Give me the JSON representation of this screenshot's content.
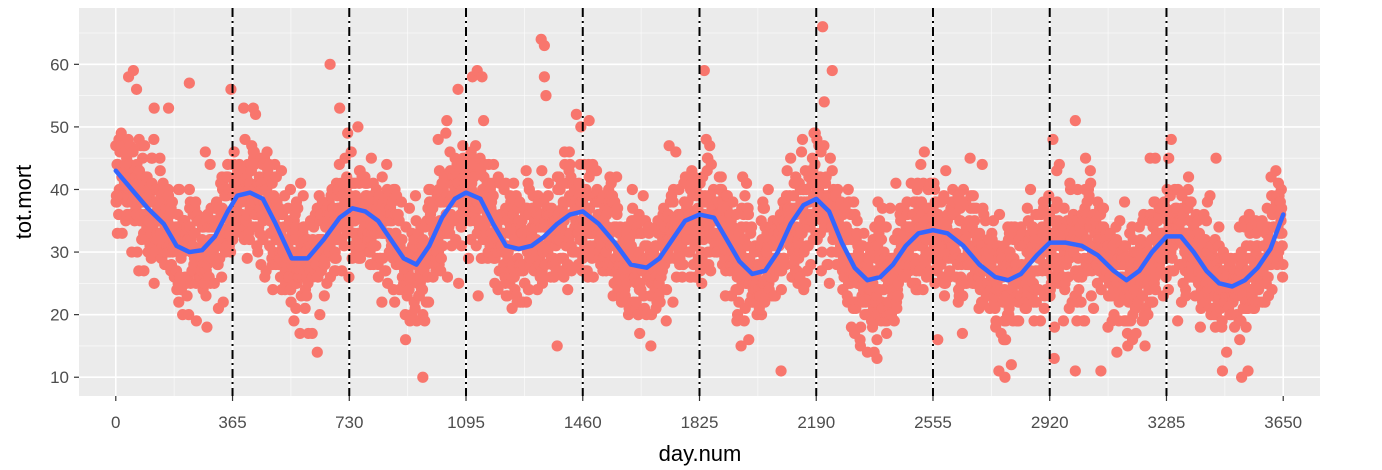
{
  "chart_data": {
    "type": "scatter",
    "title": "",
    "xlabel": "day.num",
    "ylabel": "tot.mort",
    "xlim": [
      -115,
      3765
    ],
    "ylim": [
      7,
      69
    ],
    "x_ticks": [
      0,
      365,
      730,
      1095,
      1460,
      1825,
      2190,
      2555,
      2920,
      3285,
      3650
    ],
    "x_tick_labels": [
      "0",
      "365",
      "730",
      "1095",
      "1460",
      "1825",
      "2190",
      "2555",
      "2920",
      "3285",
      "3650"
    ],
    "y_ticks": [
      10,
      20,
      30,
      40,
      50,
      60
    ],
    "y_tick_labels": [
      "10",
      "20",
      "30",
      "40",
      "50",
      "60"
    ],
    "grid": true,
    "legend": "none",
    "vlines": [
      365,
      730,
      1095,
      1460,
      1825,
      2190,
      2555,
      2920,
      3285
    ],
    "colors": {
      "panel": "#ebebeb",
      "grid": "#ffffff",
      "points": "#f8766d",
      "smooth": "#3366ff",
      "vline": "#000000"
    },
    "smooth_line": {
      "x": [
        0,
        50,
        100,
        150,
        190,
        230,
        270,
        310,
        350,
        380,
        420,
        460,
        500,
        550,
        600,
        650,
        700,
        740,
        780,
        820,
        860,
        900,
        940,
        980,
        1020,
        1060,
        1095,
        1140,
        1180,
        1220,
        1260,
        1300,
        1340,
        1380,
        1420,
        1460,
        1510,
        1560,
        1610,
        1660,
        1700,
        1740,
        1780,
        1825,
        1870,
        1910,
        1950,
        1990,
        2030,
        2070,
        2110,
        2150,
        2190,
        2230,
        2270,
        2310,
        2350,
        2390,
        2430,
        2470,
        2510,
        2555,
        2600,
        2650,
        2700,
        2750,
        2790,
        2830,
        2880,
        2920,
        2970,
        3020,
        3070,
        3120,
        3160,
        3200,
        3240,
        3285,
        3330,
        3370,
        3410,
        3450,
        3490,
        3530,
        3570,
        3610,
        3650
      ],
      "y": [
        43.0,
        40.0,
        37.0,
        34.5,
        31.0,
        30.0,
        30.3,
        32.5,
        36.5,
        39.0,
        39.5,
        38.5,
        34.5,
        29.0,
        29.0,
        32.0,
        35.5,
        37.0,
        36.5,
        35.0,
        32.0,
        29.0,
        28.0,
        31.0,
        35.5,
        38.5,
        39.5,
        38.5,
        34.5,
        31.0,
        30.5,
        31.0,
        32.5,
        34.5,
        36.0,
        36.5,
        34.5,
        31.5,
        28.0,
        27.5,
        29.0,
        32.0,
        35.0,
        36.0,
        35.5,
        32.0,
        28.5,
        26.5,
        27.0,
        30.0,
        34.5,
        37.5,
        38.5,
        36.5,
        31.5,
        27.5,
        25.5,
        26.0,
        28.0,
        31.0,
        33.0,
        33.5,
        33.0,
        31.0,
        28.0,
        26.0,
        25.5,
        26.5,
        29.5,
        31.5,
        31.5,
        31.0,
        29.5,
        27.0,
        25.5,
        27.0,
        30.0,
        32.5,
        32.5,
        30.0,
        27.0,
        25.0,
        24.5,
        25.5,
        27.5,
        30.5,
        36.0
      ]
    },
    "scatter": {
      "n_points": 3650,
      "x_range": [
        0,
        3650
      ],
      "trend": "follows smooth_line",
      "spread_sd": 4.8,
      "outliers": [
        {
          "x": 40,
          "y": 58
        },
        {
          "x": 55,
          "y": 59
        },
        {
          "x": 65,
          "y": 56
        },
        {
          "x": 120,
          "y": 53
        },
        {
          "x": 165,
          "y": 53
        },
        {
          "x": 230,
          "y": 57
        },
        {
          "x": 360,
          "y": 56
        },
        {
          "x": 400,
          "y": 53
        },
        {
          "x": 430,
          "y": 53
        },
        {
          "x": 670,
          "y": 60
        },
        {
          "x": 630,
          "y": 14
        },
        {
          "x": 700,
          "y": 53
        },
        {
          "x": 960,
          "y": 10
        },
        {
          "x": 920,
          "y": 19
        },
        {
          "x": 1070,
          "y": 56
        },
        {
          "x": 1115,
          "y": 58
        },
        {
          "x": 1130,
          "y": 59
        },
        {
          "x": 1145,
          "y": 58
        },
        {
          "x": 1330,
          "y": 64
        },
        {
          "x": 1340,
          "y": 63
        },
        {
          "x": 1340,
          "y": 58
        },
        {
          "x": 1345,
          "y": 55
        },
        {
          "x": 1380,
          "y": 15
        },
        {
          "x": 1440,
          "y": 52
        },
        {
          "x": 1480,
          "y": 51
        },
        {
          "x": 1730,
          "y": 47
        },
        {
          "x": 1840,
          "y": 59
        },
        {
          "x": 2080,
          "y": 11
        },
        {
          "x": 2210,
          "y": 66
        },
        {
          "x": 2215,
          "y": 54
        },
        {
          "x": 2240,
          "y": 59
        },
        {
          "x": 2350,
          "y": 14
        },
        {
          "x": 2380,
          "y": 13
        },
        {
          "x": 2570,
          "y": 16
        },
        {
          "x": 2780,
          "y": 10
        },
        {
          "x": 2800,
          "y": 12
        },
        {
          "x": 2930,
          "y": 48
        },
        {
          "x": 3000,
          "y": 51
        },
        {
          "x": 3080,
          "y": 11
        },
        {
          "x": 3250,
          "y": 45
        },
        {
          "x": 3300,
          "y": 48
        },
        {
          "x": 3440,
          "y": 45
        },
        {
          "x": 3520,
          "y": 10
        },
        {
          "x": 3460,
          "y": 11
        }
      ]
    }
  }
}
